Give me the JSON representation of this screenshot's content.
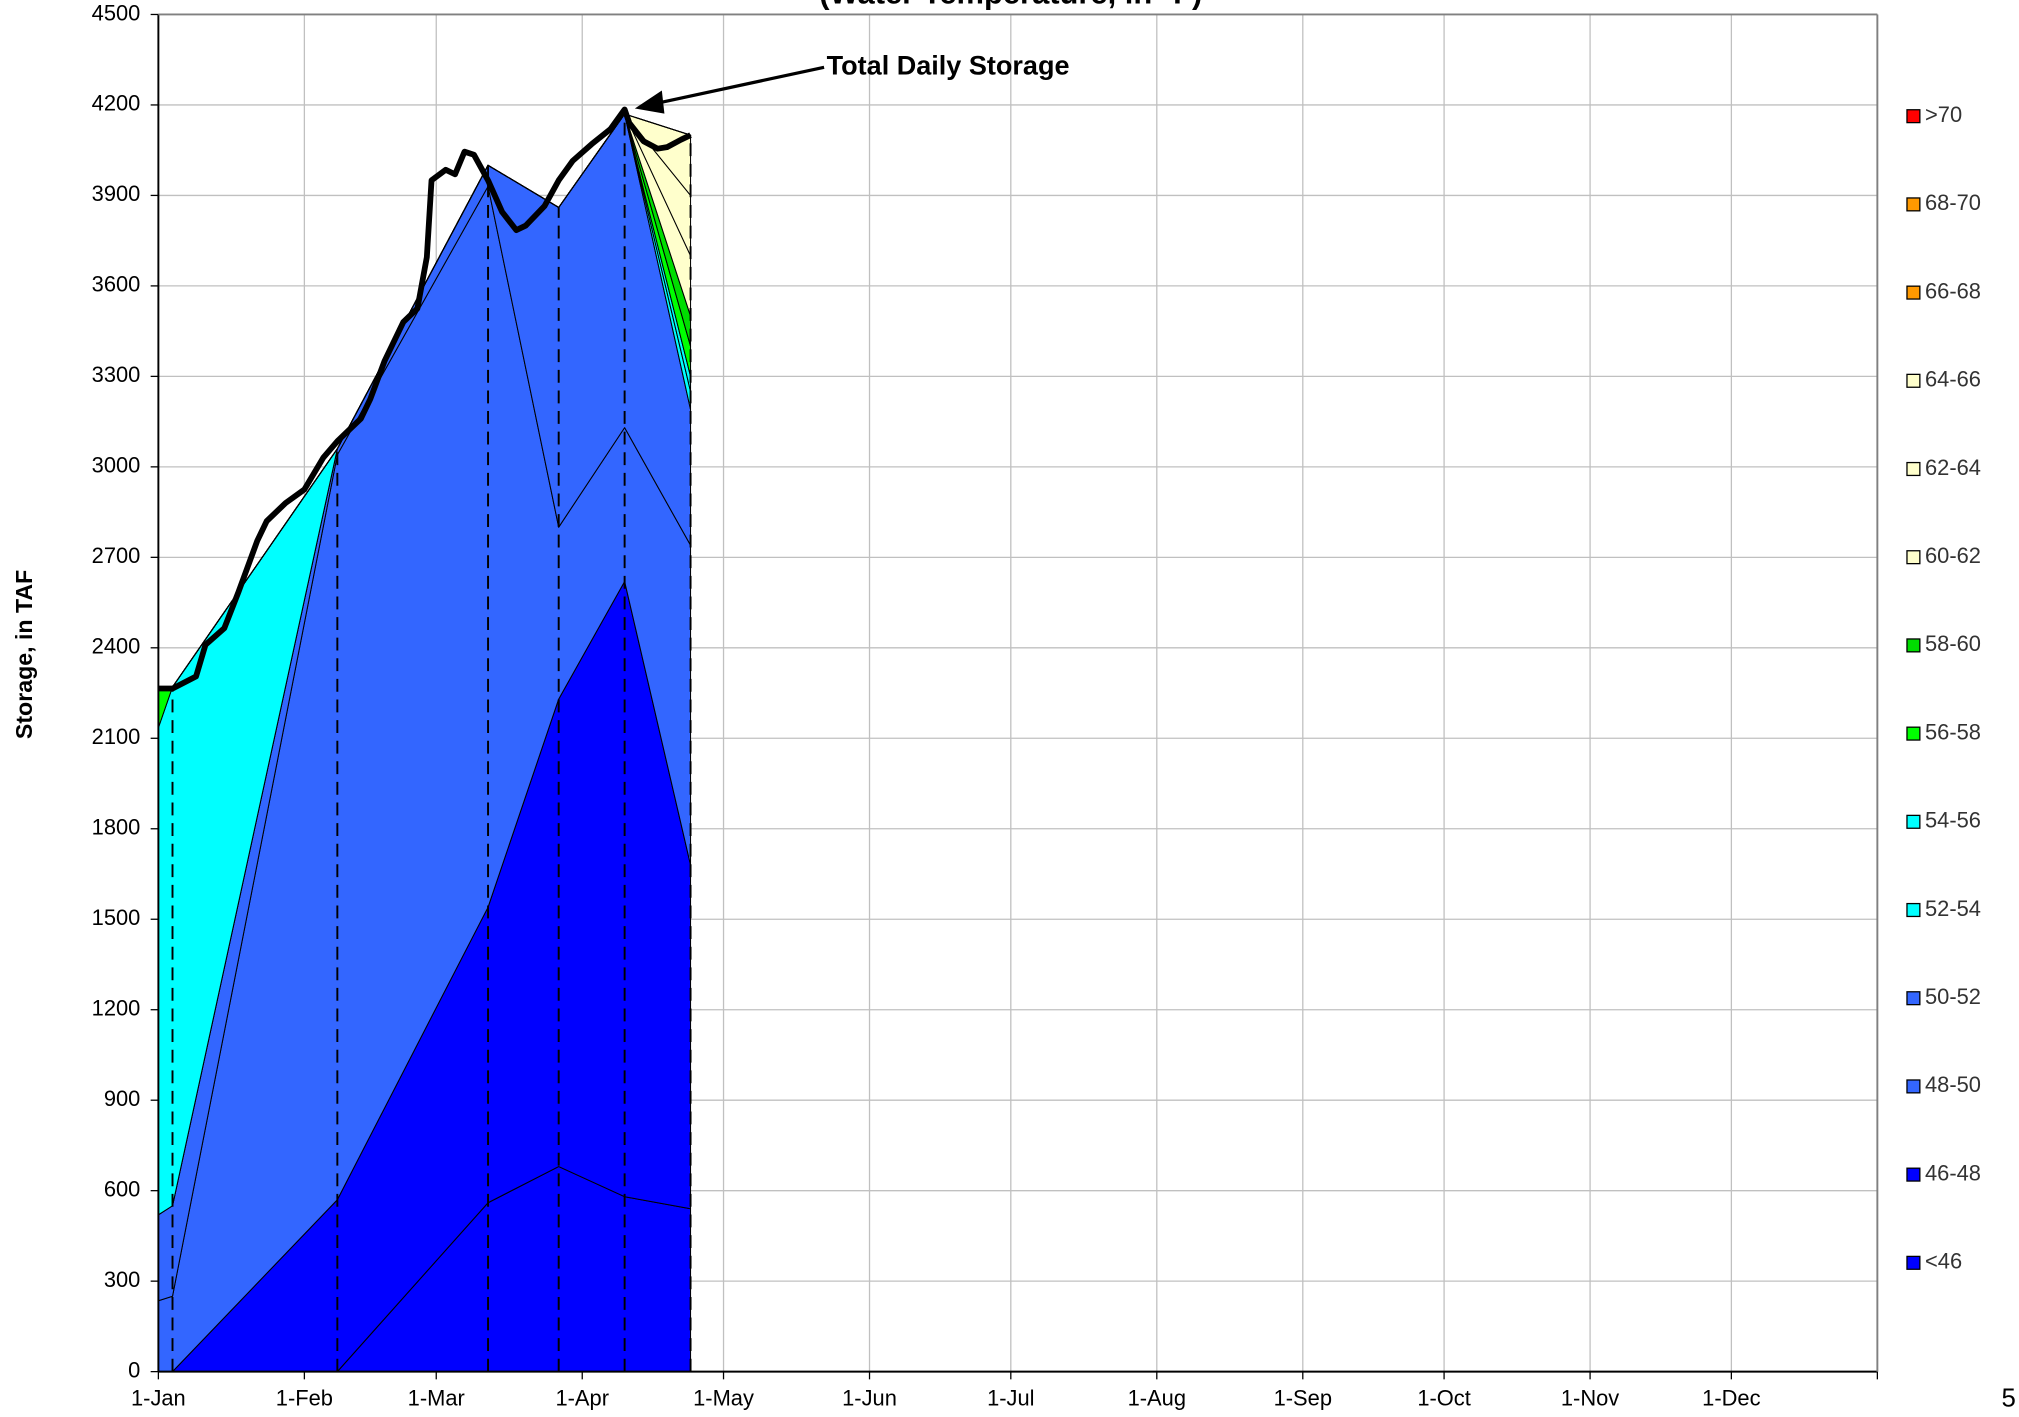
{
  "chart_data": {
    "type": "area",
    "stacked": true,
    "subtitle": "(Water Temperature, in °F)",
    "y_label": "Storage, in TAF",
    "page_number": "5",
    "grid": true,
    "legend": "right",
    "xlim": [
      0,
      365
    ],
    "xticks": [
      {
        "value": 0,
        "label": "1-Jan"
      },
      {
        "value": 31,
        "label": "1-Feb"
      },
      {
        "value": 59,
        "label": "1-Mar"
      },
      {
        "value": 90,
        "label": "1-Apr"
      },
      {
        "value": 120,
        "label": "1-May"
      },
      {
        "value": 151,
        "label": "1-Jun"
      },
      {
        "value": 181,
        "label": "1-Jul"
      },
      {
        "value": 212,
        "label": "1-Aug"
      },
      {
        "value": 243,
        "label": "1-Sep"
      },
      {
        "value": 273,
        "label": "1-Oct"
      },
      {
        "value": 304,
        "label": "1-Nov"
      },
      {
        "value": 334,
        "label": "1-Dec"
      },
      {
        "value": 365,
        "label": ""
      }
    ],
    "ylim": [
      0,
      4500
    ],
    "yticks": [
      0,
      300,
      600,
      900,
      1200,
      1500,
      1800,
      2100,
      2400,
      2700,
      3000,
      3300,
      3600,
      3900,
      4200,
      4500
    ],
    "x": [
      0,
      3,
      38,
      70,
      85,
      99,
      113
    ],
    "series": [
      {
        "name": "<46",
        "color": "#0000ff",
        "values": [
          0,
          0,
          0,
          560,
          680,
          580,
          540
        ]
      },
      {
        "name": "46-48",
        "color": "#0000ff",
        "values": [
          0,
          0,
          570,
          980,
          1550,
          2040,
          1140
        ]
      },
      {
        "name": "48-50",
        "color": "#3366ff",
        "values": [
          235,
          250,
          2470,
          2390,
          570,
          510,
          1060
        ]
      },
      {
        "name": "50-52",
        "color": "#3366ff",
        "values": [
          285,
          300,
          20,
          70,
          1060,
          1040,
          450
        ]
      },
      {
        "name": "52-54",
        "color": "#00ffff",
        "values": [
          0,
          0,
          0,
          0,
          0,
          0,
          60
        ]
      },
      {
        "name": "54-56",
        "color": "#00ffff",
        "values": [
          1615,
          1720,
          0,
          0,
          0,
          0,
          50
        ]
      },
      {
        "name": "56-58",
        "color": "#00ff00",
        "values": [
          130,
          0,
          0,
          0,
          0,
          0,
          100
        ]
      },
      {
        "name": "58-60",
        "color": "#00dd00",
        "values": [
          0,
          0,
          0,
          0,
          0,
          0,
          100
        ]
      },
      {
        "name": "60-62",
        "color": "#ffffcc",
        "values": [
          0,
          0,
          0,
          0,
          0,
          0,
          200
        ]
      },
      {
        "name": "62-64",
        "color": "#ffffcc",
        "values": [
          0,
          0,
          0,
          0,
          0,
          0,
          200
        ]
      },
      {
        "name": "64-66",
        "color": "#ffffcc",
        "values": [
          0,
          0,
          0,
          0,
          0,
          0,
          200
        ]
      },
      {
        "name": "66-68",
        "color": "#ff9900",
        "values": [
          0,
          0,
          0,
          0,
          0,
          0,
          0
        ]
      },
      {
        "name": "68-70",
        "color": "#ff9900",
        "values": [
          0,
          0,
          0,
          0,
          0,
          0,
          0
        ]
      },
      {
        "name": ">70",
        "color": "#ff0000",
        "values": [
          0,
          0,
          0,
          0,
          0,
          0,
          0
        ]
      }
    ],
    "line": {
      "name": "Total Daily Storage",
      "color": "#000000",
      "x": [
        0,
        3,
        8,
        10,
        14,
        17,
        21,
        23,
        27,
        31,
        35,
        38,
        43,
        45,
        48,
        52,
        55,
        57,
        58,
        61,
        63,
        65,
        67,
        70,
        73,
        76,
        78,
        82,
        85,
        88,
        92,
        96,
        99,
        100,
        103,
        106,
        108,
        111,
        113
      ],
      "values": [
        2265,
        2265,
        2305,
        2410,
        2465,
        2585,
        2755,
        2820,
        2880,
        2925,
        3030,
        3085,
        3160,
        3225,
        3350,
        3480,
        3525,
        3695,
        3950,
        3985,
        3970,
        4045,
        4035,
        3950,
        3845,
        3785,
        3800,
        3865,
        3950,
        4015,
        4070,
        4120,
        4185,
        4140,
        4080,
        4055,
        4060,
        4085,
        4100
      ]
    }
  }
}
